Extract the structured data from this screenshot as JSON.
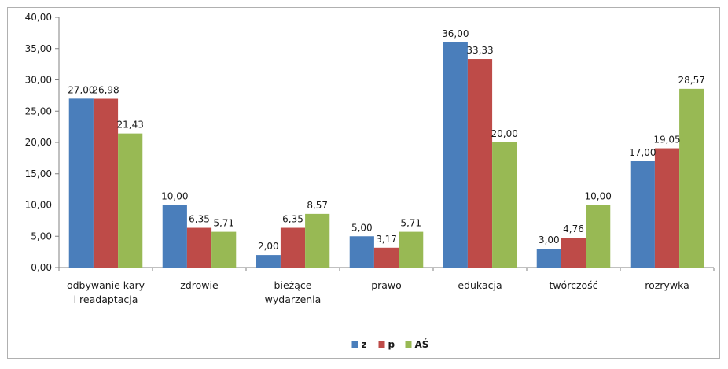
{
  "chart_data": {
    "type": "bar",
    "title": "",
    "xlabel": "",
    "ylabel": "",
    "ylim": [
      0,
      40
    ],
    "ytick_step": 5,
    "ytick_labels": [
      "0,00",
      "5,00",
      "10,00",
      "15,00",
      "20,00",
      "25,00",
      "30,00",
      "35,00",
      "40,00"
    ],
    "grid": false,
    "legend_position": "bottom",
    "categories": [
      [
        "odbywanie kary",
        "i readaptacja"
      ],
      [
        "zdrowie"
      ],
      [
        "bieżące",
        "wydarzenia"
      ],
      [
        "prawo"
      ],
      [
        "edukacja"
      ],
      [
        "twórczość"
      ],
      [
        "rozrywka"
      ]
    ],
    "series": [
      {
        "name": "z",
        "color": "#4a7ebb",
        "values": [
          27.0,
          10.0,
          2.0,
          5.0,
          36.0,
          3.0,
          17.0
        ],
        "labels": [
          "27,00",
          "10,00",
          "2,00",
          "5,00",
          "36,00",
          "3,00",
          "17,00"
        ]
      },
      {
        "name": "p",
        "color": "#be4b48",
        "values": [
          26.98,
          6.35,
          6.35,
          3.17,
          33.33,
          4.76,
          19.05
        ],
        "labels": [
          "26,98",
          "6,35",
          "6,35",
          "3,17",
          "33,33",
          "4,76",
          "19,05"
        ]
      },
      {
        "name": "AŚ",
        "color": "#98b954",
        "values": [
          21.43,
          5.71,
          8.57,
          5.71,
          20.0,
          10.0,
          28.57
        ],
        "labels": [
          "21,43",
          "5,71",
          "8,57",
          "5,71",
          "20,00",
          "10,00",
          "28,57"
        ]
      }
    ]
  }
}
